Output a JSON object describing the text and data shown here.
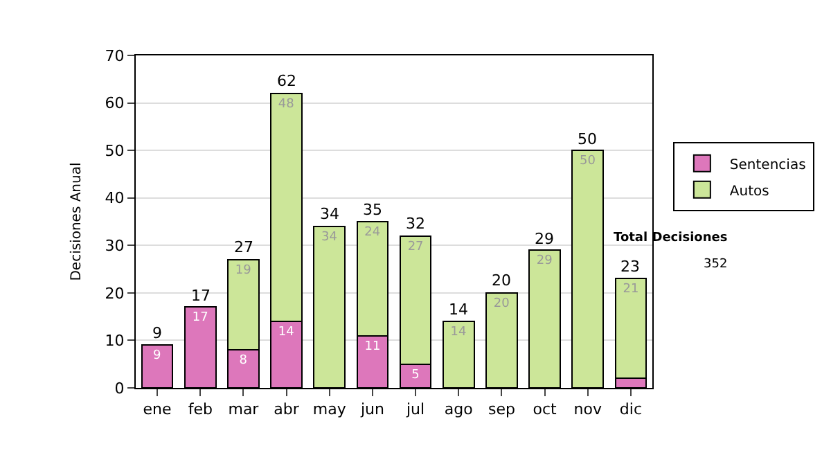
{
  "chart_data": {
    "type": "bar",
    "stacked": true,
    "ylabel": "Decisiones Anual",
    "categories": [
      "ene",
      "feb",
      "mar",
      "abr",
      "may",
      "jun",
      "jul",
      "ago",
      "sep",
      "oct",
      "nov",
      "dic"
    ],
    "series": [
      {
        "name": "Sentencias",
        "color": "#dd77bb",
        "values": [
          9,
          17,
          8,
          14,
          null,
          11,
          5,
          null,
          null,
          null,
          null,
          2
        ],
        "value_labels": [
          "9",
          "17",
          "8",
          "14",
          null,
          "11",
          "5",
          null,
          null,
          null,
          null,
          null
        ]
      },
      {
        "name": "Autos",
        "color": "#cce699",
        "values": [
          null,
          null,
          19,
          48,
          34,
          24,
          27,
          14,
          20,
          29,
          50,
          21
        ],
        "value_labels": [
          null,
          null,
          "19",
          "48",
          "34",
          "24",
          "27",
          "14",
          "20",
          "29",
          "50",
          "21"
        ]
      }
    ],
    "totals": [
      "9",
      "17",
      "27",
      "62",
      "34",
      "35",
      "32",
      "14",
      "20",
      "29",
      "50",
      "23"
    ],
    "ylim": [
      0,
      70
    ],
    "yticks": [
      0,
      10,
      20,
      30,
      40,
      50,
      60,
      70
    ],
    "grid": "y",
    "legend": "right",
    "annotations": [
      "Total Decisiones",
      "352"
    ]
  }
}
